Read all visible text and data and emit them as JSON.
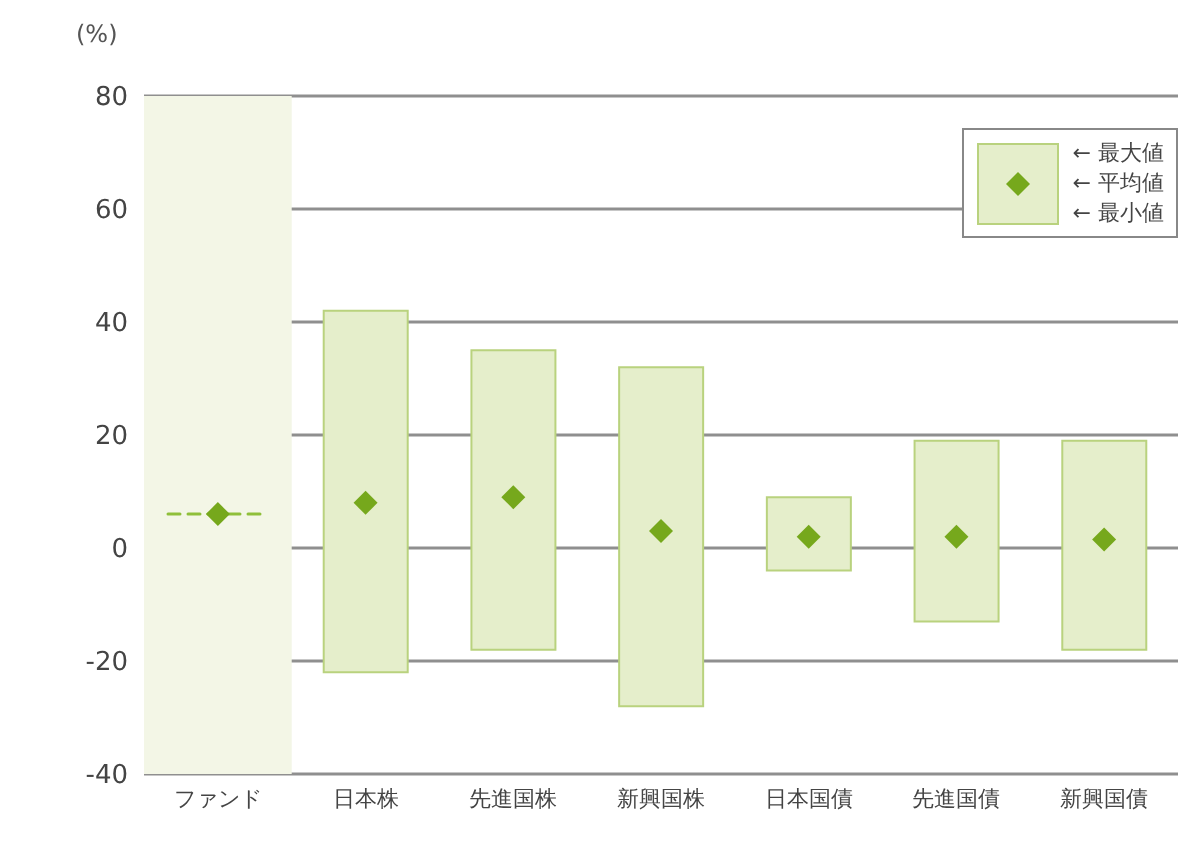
{
  "chart_data": {
    "type": "bar",
    "ylabel": "(%)",
    "categories": [
      "ファンド",
      "日本株",
      "先進国株",
      "新興国株",
      "日本国債",
      "先進国債",
      "新興国債"
    ],
    "series": [
      {
        "color": "#e5eecb",
        "base": [
          null,
          -22,
          -18,
          -28,
          -4,
          -13,
          -18
        ],
        "values": [
          null,
          64,
          53,
          60,
          13,
          32,
          37
        ]
      },
      {
        "type": "scatter",
        "name": "← 平均値",
        "color": "#76a81c",
        "marker": "diamond",
        "values": [
          6,
          8,
          9,
          3,
          2,
          2,
          1.5
        ]
      }
    ],
    "ref_lines": [
      {
        "axis": "y",
        "value": 6,
        "color": "#8fbf3a",
        "line_style": "dashed"
      }
    ],
    "ylim": [
      -40,
      80
    ],
    "yticks": [
      -40,
      -20,
      0,
      20,
      40,
      60,
      80
    ],
    "grid": "y",
    "bands": [
      {
        "axis": "x",
        "from": "ファンド",
        "to": "ファンド",
        "color": "#f3f6e6"
      }
    ],
    "legend": "top right",
    "annotations": [
      "← 最大値",
      "← 最小値"
    ]
  }
}
